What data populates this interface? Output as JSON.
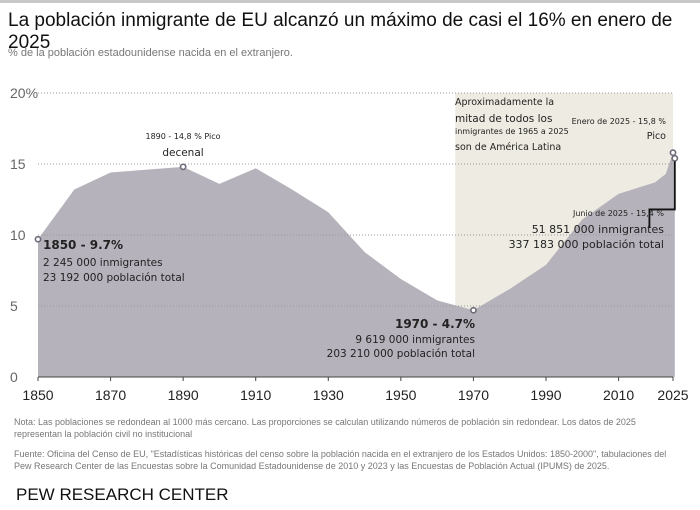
{
  "title": "La población inmigrante de EU alcanzó un máximo de casi el 16% en enero de 2025",
  "subtitle": "% de la población estadounidense nacida en el extranjero.",
  "chart_data": {
    "type": "area",
    "title": "La población inmigrante de EU alcanzó un máximo de casi el 16% en enero de 2025",
    "ylabel": "% de la población estadounidense nacida en el extranjero.",
    "ylim": [
      0,
      20
    ],
    "xlim": [
      1850,
      2025
    ],
    "y_ticks": [
      "0",
      "5",
      "10",
      "15",
      "20%"
    ],
    "y_tick_values": [
      0,
      5,
      10,
      15,
      20
    ],
    "x_ticks": [
      "1850",
      "1870",
      "1890",
      "1910",
      "1930",
      "1950",
      "1970",
      "1990",
      "2010",
      "2025"
    ],
    "x": [
      1850,
      1860,
      1870,
      1880,
      1890,
      1900,
      1910,
      1920,
      1930,
      1940,
      1950,
      1960,
      1970,
      1980,
      1990,
      2000,
      2010,
      2020,
      2023,
      2025
    ],
    "values": [
      9.7,
      13.2,
      14.4,
      14.6,
      14.8,
      13.6,
      14.7,
      13.2,
      11.6,
      8.8,
      6.9,
      5.4,
      4.7,
      6.2,
      7.9,
      11.1,
      12.9,
      13.7,
      14.3,
      15.8
    ],
    "last_point": {
      "x": 2025.5,
      "value": 15.4
    },
    "shaded_range": [
      1965,
      2025
    ],
    "grid": true,
    "colors": {
      "area": "#b5b2bb",
      "shade": "#eeebe2",
      "marker": "#6e6a78"
    },
    "annotations": {
      "shade": [
        "Aproximadamente la",
        "mitad de todos los",
        "inmigrantes de 1965 a 2025",
        "son de América Latina"
      ],
      "p1890": [
        "1890 - 14,8 % Pico",
        "decenal"
      ],
      "p1850": [
        "1850 - 9.7%",
        "2 245 000 inmigrantes",
        "23 192 000 población total"
      ],
      "p1970": [
        "1970 - 4.7%",
        "9 619 000 inmigrantes",
        "203 210 000 población total"
      ],
      "pjan2025": [
        "Enero de 2025 - 15,8 %",
        "Pico"
      ],
      "pjun2025": [
        "Junio de 2025 - 15,4 %",
        "51 851 000 inmigrantes",
        "337 183 000 población total"
      ]
    }
  },
  "note": "Nota: Las poblaciones se redondean al 1000 más cercano. Las proporciones se calculan utilizando números de población sin redondear. Los datos de 2025 representan la población civil no institucional",
  "source": "Fuente: Oficina del Censo de EU, \"Estadísticas históricas del censo sobre la población nacida en el extranjero de los Estados Unidos: 1850-2000\", tabulaciones del Pew Research Center de las Encuestas sobre la Comunidad Estadounidense de 2010 y 2023 y las Encuestas de Población Actual (IPUMS) de 2025.",
  "logo": "PEW RESEARCH CENTER"
}
